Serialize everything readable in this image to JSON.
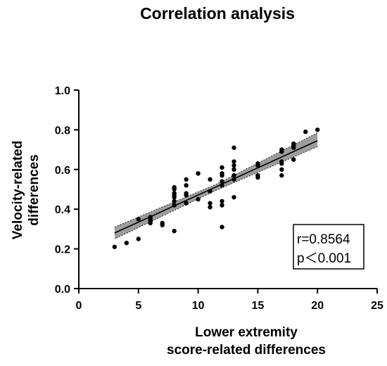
{
  "chart_data": {
    "type": "scatter",
    "title": "Correlation analysis",
    "xlabel_lines": [
      "Lower extremity",
      "score-related differences"
    ],
    "ylabel_lines": [
      "Velocity-related",
      "differences"
    ],
    "xlim": [
      0,
      25
    ],
    "ylim": [
      0.0,
      1.0
    ],
    "x_ticks": [
      0,
      5,
      10,
      15,
      20,
      25
    ],
    "y_ticks": [
      "0.0",
      "0.2",
      "0.4",
      "0.6",
      "0.8",
      "1.0"
    ],
    "grid": false,
    "points": [
      [
        3,
        0.21
      ],
      [
        4,
        0.23
      ],
      [
        5,
        0.25
      ],
      [
        5,
        0.35
      ],
      [
        6,
        0.33
      ],
      [
        6,
        0.34
      ],
      [
        6,
        0.35
      ],
      [
        6,
        0.36
      ],
      [
        7,
        0.32
      ],
      [
        7,
        0.33
      ],
      [
        8,
        0.29
      ],
      [
        8,
        0.42
      ],
      [
        8,
        0.44
      ],
      [
        8,
        0.46
      ],
      [
        8,
        0.47
      ],
      [
        8,
        0.48
      ],
      [
        8,
        0.5
      ],
      [
        8,
        0.51
      ],
      [
        9,
        0.43
      ],
      [
        9,
        0.47
      ],
      [
        9,
        0.48
      ],
      [
        9,
        0.52
      ],
      [
        9,
        0.55
      ],
      [
        10,
        0.45
      ],
      [
        10,
        0.58
      ],
      [
        11,
        0.41
      ],
      [
        11,
        0.43
      ],
      [
        11,
        0.49
      ],
      [
        11,
        0.55
      ],
      [
        12,
        0.31
      ],
      [
        12,
        0.42
      ],
      [
        12,
        0.44
      ],
      [
        12,
        0.52
      ],
      [
        12,
        0.54
      ],
      [
        12,
        0.57
      ],
      [
        12,
        0.58
      ],
      [
        12,
        0.61
      ],
      [
        13,
        0.46
      ],
      [
        13,
        0.55
      ],
      [
        13,
        0.57
      ],
      [
        13,
        0.6
      ],
      [
        13,
        0.62
      ],
      [
        13,
        0.64
      ],
      [
        13,
        0.71
      ],
      [
        15,
        0.56
      ],
      [
        15,
        0.57
      ],
      [
        15,
        0.62
      ],
      [
        15,
        0.63
      ],
      [
        17,
        0.57
      ],
      [
        17,
        0.6
      ],
      [
        17,
        0.63
      ],
      [
        17,
        0.64
      ],
      [
        17,
        0.69
      ],
      [
        17,
        0.7
      ],
      [
        18,
        0.65
      ],
      [
        18,
        0.71
      ],
      [
        18,
        0.72
      ],
      [
        18,
        0.73
      ],
      [
        19,
        0.79
      ],
      [
        20,
        0.8
      ]
    ],
    "regression": {
      "x_range": [
        3,
        20
      ],
      "y_at_start": 0.28,
      "y_at_end": 0.745,
      "ci_lower_start": 0.25,
      "ci_upper_start": 0.31,
      "ci_lower_mid": 0.495,
      "ci_upper_mid": 0.525,
      "ci_mid_x": 11.5,
      "ci_lower_end": 0.715,
      "ci_upper_end": 0.785
    },
    "annotation": {
      "r_text": "r=0.8564",
      "p_text": "p＜0.001"
    },
    "colors": {
      "points": "#000000",
      "line": "#000000",
      "ci_fill": "#8c8c8c",
      "axis": "#000000"
    }
  }
}
